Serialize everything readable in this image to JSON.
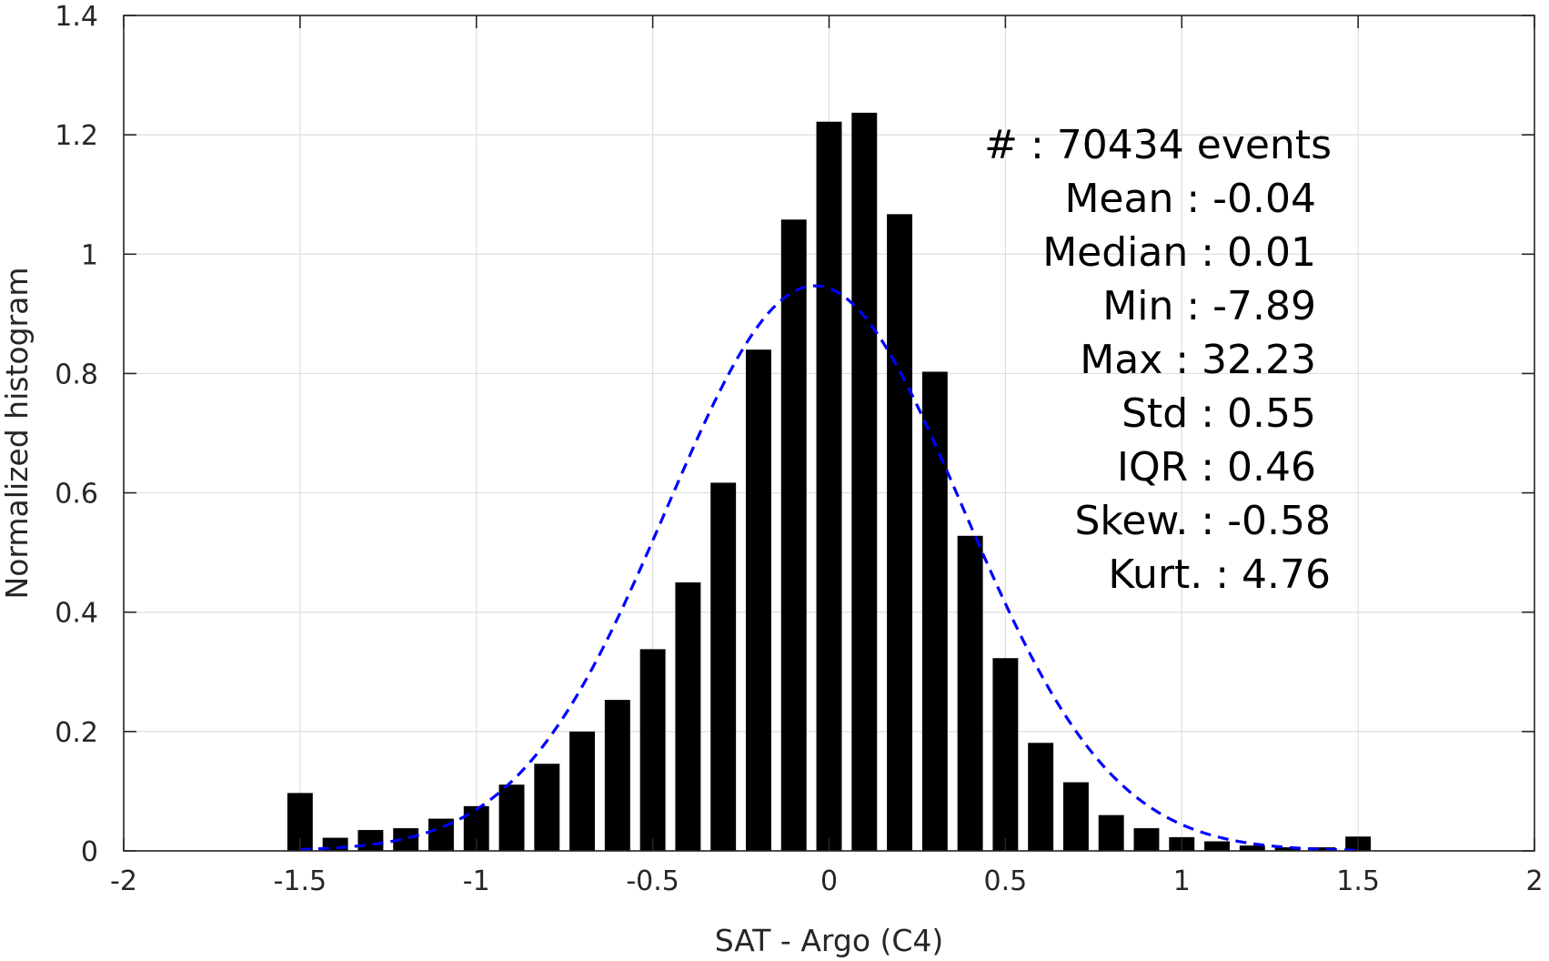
{
  "chart_data": {
    "type": "bar",
    "xlabel": "SAT - Argo (C4)",
    "ylabel": "Normalized histogram",
    "xlim": [
      -2,
      2
    ],
    "ylim": [
      0,
      1.4
    ],
    "grid": true,
    "x_ticks": [
      -2,
      -1.5,
      -1,
      -0.5,
      0,
      0.5,
      1,
      1.5,
      2
    ],
    "x_tick_labels": [
      "-2",
      "-1.5",
      "-1",
      "-0.5",
      "0",
      "0.5",
      "1",
      "1.5",
      "2"
    ],
    "y_ticks": [
      0,
      0.2,
      0.4,
      0.6,
      0.8,
      1,
      1.2,
      1.4
    ],
    "y_tick_labels": [
      "0",
      "0.2",
      "0.4",
      "0.6",
      "0.8",
      "1",
      "1.2",
      "1.4"
    ],
    "bar_color": "#000000",
    "bin_width": 0.1,
    "bins": [
      {
        "x": -1.5,
        "y": 0.097
      },
      {
        "x": -1.4,
        "y": 0.022
      },
      {
        "x": -1.3,
        "y": 0.035
      },
      {
        "x": -1.2,
        "y": 0.038
      },
      {
        "x": -1.1,
        "y": 0.054
      },
      {
        "x": -1.0,
        "y": 0.075
      },
      {
        "x": -0.9,
        "y": 0.111
      },
      {
        "x": -0.8,
        "y": 0.146
      },
      {
        "x": -0.7,
        "y": 0.2
      },
      {
        "x": -0.6,
        "y": 0.253
      },
      {
        "x": -0.5,
        "y": 0.338
      },
      {
        "x": -0.4,
        "y": 0.45
      },
      {
        "x": -0.3,
        "y": 0.617
      },
      {
        "x": -0.2,
        "y": 0.84
      },
      {
        "x": -0.1,
        "y": 1.058
      },
      {
        "x": 0.0,
        "y": 1.222
      },
      {
        "x": 0.1,
        "y": 1.237
      },
      {
        "x": 0.2,
        "y": 1.067
      },
      {
        "x": 0.3,
        "y": 0.803
      },
      {
        "x": 0.4,
        "y": 0.528
      },
      {
        "x": 0.5,
        "y": 0.323
      },
      {
        "x": 0.6,
        "y": 0.181
      },
      {
        "x": 0.7,
        "y": 0.115
      },
      {
        "x": 0.8,
        "y": 0.06
      },
      {
        "x": 0.9,
        "y": 0.038
      },
      {
        "x": 1.0,
        "y": 0.023
      },
      {
        "x": 1.1,
        "y": 0.016
      },
      {
        "x": 1.2,
        "y": 0.009
      },
      {
        "x": 1.3,
        "y": 0.006
      },
      {
        "x": 1.4,
        "y": 0.006
      },
      {
        "x": 1.5,
        "y": 0.024
      }
    ],
    "fit_curve": {
      "type": "gaussian",
      "mean": -0.04,
      "std": 0.42,
      "peak": 0.947,
      "x_range": [
        -1.5,
        1.5
      ],
      "color": "#0000ff",
      "style": "dashed"
    },
    "annotations": [
      "#  : 70434 events",
      "Mean : -0.04",
      "Median : 0.01",
      "Min : -7.89",
      "Max : 32.23",
      "Std : 0.55",
      "IQR : 0.46",
      "Skew. : -0.58",
      "Kurt. : 4.76"
    ]
  }
}
